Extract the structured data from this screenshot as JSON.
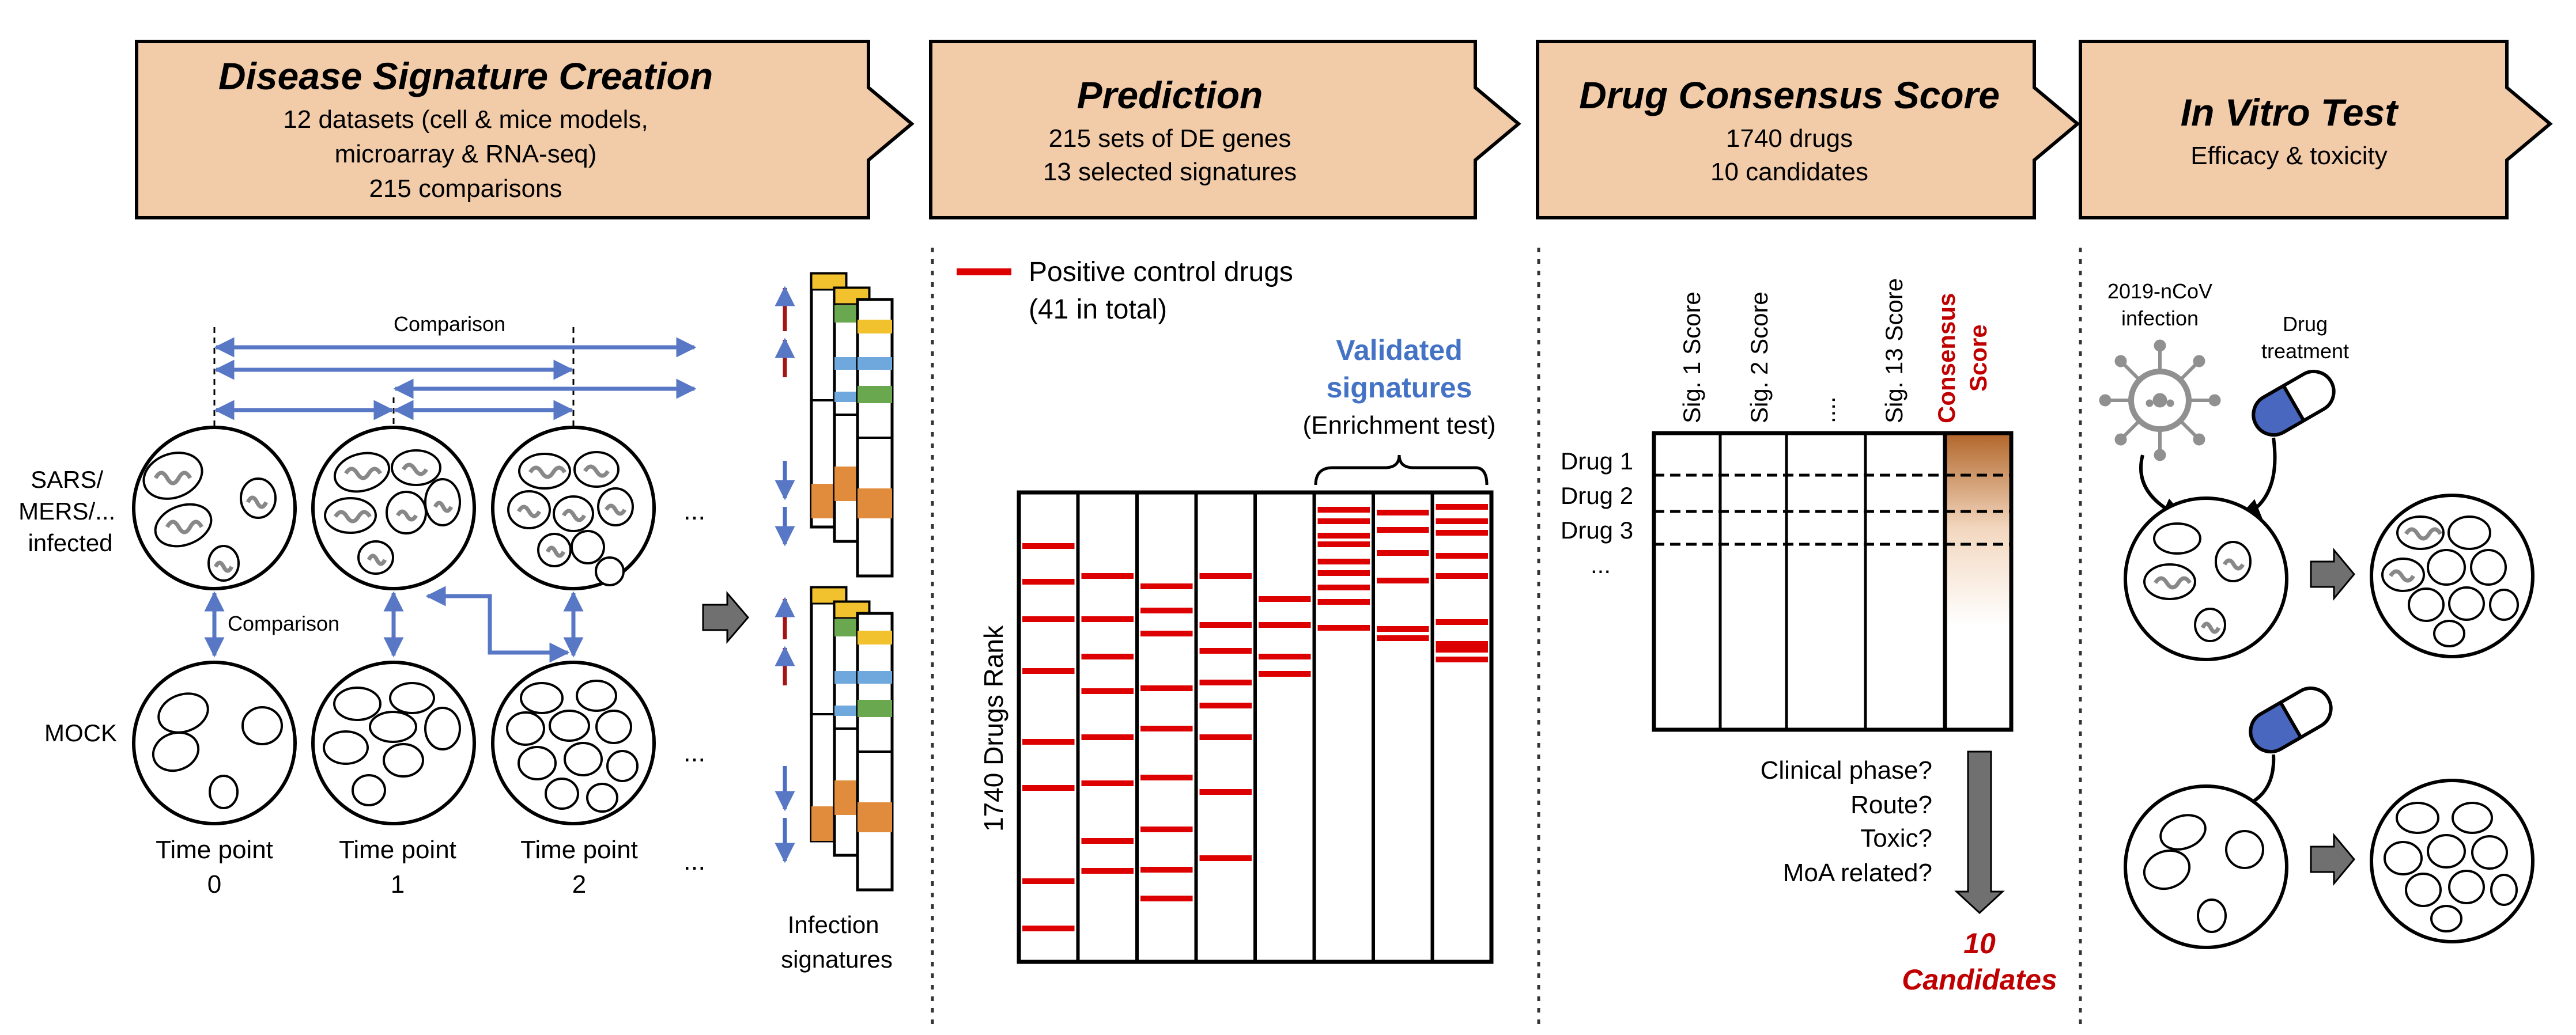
{
  "colors": {
    "header_fill": "#f2cba9",
    "header_stroke": "#000000",
    "comparison_arrow": "#5877c5",
    "up_arrow": "#a31515",
    "down_arrow": "#4b6fc2",
    "positive_control": "#dd0000",
    "validated_text": "#4472c4",
    "consensus_text": "#c00000",
    "consensus_gradient_top": "#b2662a",
    "gray_arrow": "#707070",
    "virus": "#909090",
    "pill_blue": "#4a67c0",
    "sig_colors": [
      "#f2c12e",
      "#6aa84f",
      "#6fa8dc",
      "#e08c3c"
    ]
  },
  "stages": [
    {
      "title": "Disease Signature Creation",
      "lines": [
        "12 datasets (cell & mice models,",
        "microarray & RNA-seq)",
        "215 comparisons"
      ]
    },
    {
      "title": "Prediction",
      "lines": [
        "215 sets of DE genes",
        "13 selected signatures"
      ]
    },
    {
      "title": "Drug Consensus Score",
      "lines": [
        "1740 drugs",
        "10 candidates"
      ]
    },
    {
      "title": "In Vitro Test",
      "lines": [
        "Efficacy & toxicity"
      ]
    }
  ],
  "panel1": {
    "comparison_top": "Comparison",
    "comparison_mid": "Comparison",
    "row_infected": [
      "SARS/",
      "MERS/...",
      "infected"
    ],
    "row_mock": "MOCK",
    "time_points": [
      {
        "label": "Time point",
        "value": "0"
      },
      {
        "label": "Time point",
        "value": "1"
      },
      {
        "label": "Time point",
        "value": "2"
      }
    ],
    "ellipsis": "...",
    "signatures_label": [
      "Infection",
      "signatures"
    ]
  },
  "panel2": {
    "legend_label_line1": "Positive control drugs",
    "legend_label_line2": "(41 in total)",
    "validated_line1": "Validated",
    "validated_line2": "signatures",
    "enrichment": "(Enrichment test)",
    "y_axis_label": "1740 Drugs Rank"
  },
  "panel3": {
    "columns": [
      "Sig. 1 Score",
      "Sig. 2 Score",
      "....",
      "Sig. 13 Score"
    ],
    "consensus_line1": "Consensus",
    "consensus_line2": "Score",
    "drugs": [
      "Drug 1",
      "Drug 2",
      "Drug 3",
      "..."
    ],
    "questions": [
      "Clinical phase?",
      "Route?",
      "Toxic?",
      "MoA related?"
    ],
    "result_number": "10",
    "result_label": "Candidates"
  },
  "panel4": {
    "infection_line1": "2019-nCoV",
    "infection_line2": "infection",
    "drug_line1": "Drug",
    "drug_line2": "treatment"
  }
}
